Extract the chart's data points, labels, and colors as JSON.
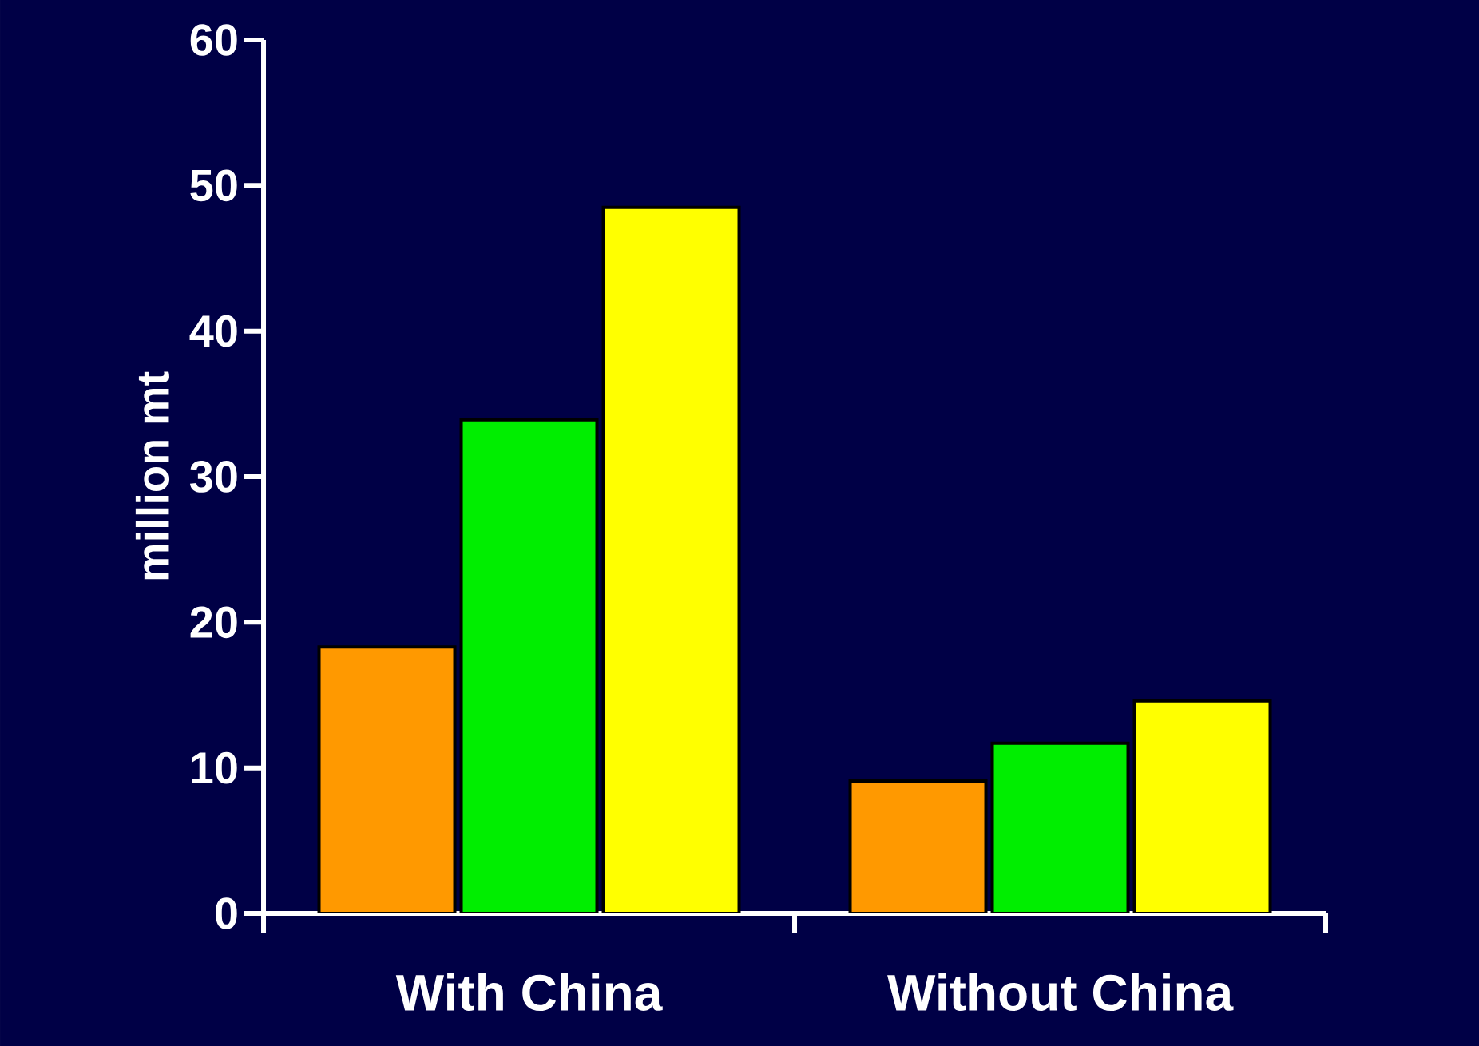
{
  "chart_data": {
    "type": "bar",
    "ylabel": "million mt",
    "categories": [
      "With China",
      "Without China"
    ],
    "series": [
      {
        "color": "#ff9900",
        "values": [
          18.3,
          9.1
        ]
      },
      {
        "color": "#00ee00",
        "values": [
          33.9,
          11.7
        ]
      },
      {
        "color": "#ffff00",
        "values": [
          48.5,
          14.6
        ]
      }
    ],
    "ylim": [
      0,
      60
    ],
    "yticks": [
      0,
      10,
      20,
      30,
      40,
      50,
      60
    ],
    "grid": false
  }
}
